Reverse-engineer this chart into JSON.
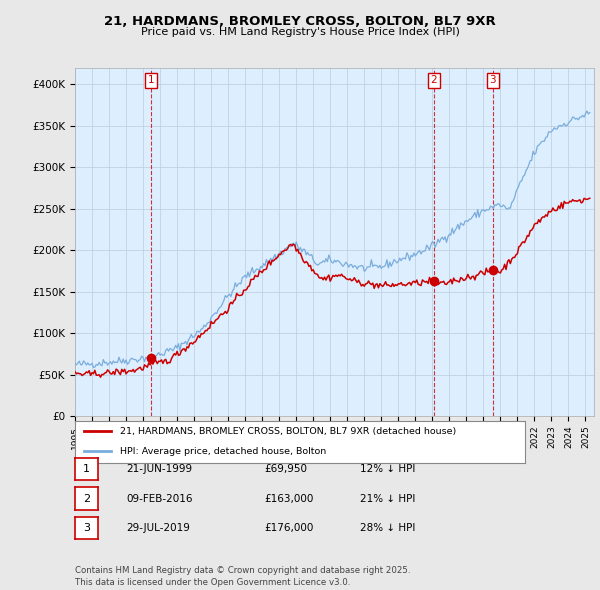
{
  "title_line1": "21, HARDMANS, BROMLEY CROSS, BOLTON, BL7 9XR",
  "title_line2": "Price paid vs. HM Land Registry's House Price Index (HPI)",
  "ylabel_ticks": [
    "£0",
    "£50K",
    "£100K",
    "£150K",
    "£200K",
    "£250K",
    "£300K",
    "£350K",
    "£400K"
  ],
  "ytick_values": [
    0,
    50000,
    100000,
    150000,
    200000,
    250000,
    300000,
    350000,
    400000
  ],
  "ylim": [
    0,
    420000
  ],
  "legend_line1": "21, HARDMANS, BROMLEY CROSS, BOLTON, BL7 9XR (detached house)",
  "legend_line2": "HPI: Average price, detached house, Bolton",
  "transaction_dates_display": [
    "21-JUN-1999",
    "09-FEB-2016",
    "29-JUL-2019"
  ],
  "transaction_prices_display": [
    "£69,950",
    "£163,000",
    "£176,000"
  ],
  "transaction_hpi_display": [
    "12% ↓ HPI",
    "21% ↓ HPI",
    "28% ↓ HPI"
  ],
  "footer": "Contains HM Land Registry data © Crown copyright and database right 2025.\nThis data is licensed under the Open Government Licence v3.0.",
  "hpi_line_color": "#7aaddc",
  "sold_line_color": "#cc0000",
  "transaction_vline_color": "#cc0000",
  "background_color": "#e8e8e8",
  "plot_bg_color": "#ddeeff",
  "grid_color": "#bbccdd",
  "hpi_anchors": {
    "1995.0": 62000,
    "1996.0": 63000,
    "1997.0": 65000,
    "1998.0": 67000,
    "1999.5": 71000,
    "2001.0": 82000,
    "2002.5": 105000,
    "2004.0": 145000,
    "2005.0": 168000,
    "2007.0": 195000,
    "2007.8": 208000,
    "2008.5": 198000,
    "2009.3": 183000,
    "2010.0": 188000,
    "2011.0": 183000,
    "2012.0": 178000,
    "2013.0": 180000,
    "2014.0": 188000,
    "2015.0": 195000,
    "2016.0": 205000,
    "2017.0": 220000,
    "2018.0": 235000,
    "2019.0": 248000,
    "2020.0": 255000,
    "2020.5": 248000,
    "2021.0": 272000,
    "2022.0": 318000,
    "2023.0": 345000,
    "2024.0": 355000,
    "2025.2": 365000
  },
  "sold_anchors": {
    "1995.0": 52000,
    "1995.5": 50000,
    "1996.5": 51000,
    "1997.5": 53000,
    "1998.5": 55000,
    "1999.5": 62000,
    "2000.5": 67000,
    "2002.0": 90000,
    "2004.0": 130000,
    "2005.5": 165000,
    "2007.0": 195000,
    "2007.8": 208000,
    "2008.5": 188000,
    "2009.5": 165000,
    "2010.5": 170000,
    "2011.5": 162000,
    "2013.0": 157000,
    "2015.0": 160000,
    "2016.1": 163000,
    "2016.5": 158000,
    "2017.0": 162000,
    "2018.0": 167000,
    "2019.0": 172000,
    "2019.58": 176000,
    "2020.0": 174000,
    "2021.0": 198000,
    "2022.0": 230000,
    "2023.0": 248000,
    "2024.0": 258000,
    "2025.2": 262000
  },
  "vline_x": [
    1999.47,
    2016.1,
    2019.56
  ],
  "trans_prices": [
    69950,
    163000,
    176000
  ],
  "trans_nums": [
    1,
    2,
    3
  ]
}
